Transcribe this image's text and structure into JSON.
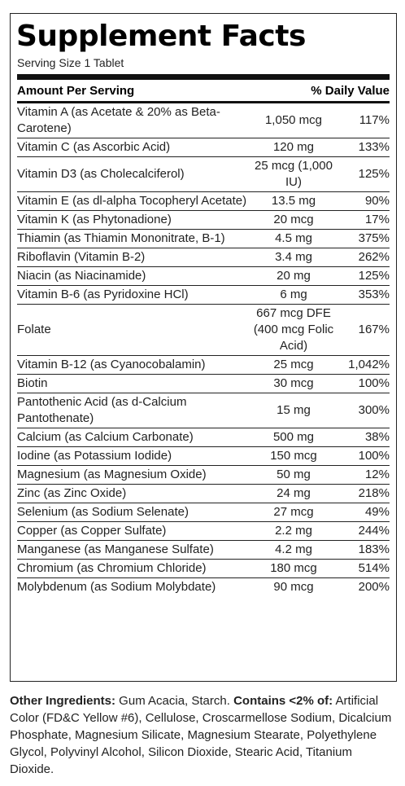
{
  "title": "Supplement Facts",
  "serving_size": "Serving Size 1 Tablet",
  "header": {
    "amount": "Amount Per Serving",
    "daily_value": "% Daily Value"
  },
  "nutrients": [
    {
      "name": "Vitamin A (as Acetate & 20% as Beta-Carotene)",
      "amount": "1,050 mcg",
      "dv": "117%"
    },
    {
      "name": "Vitamin C (as Ascorbic Acid)",
      "amount": "120 mg",
      "dv": "133%"
    },
    {
      "name": "Vitamin D3 (as Cholecalciferol)",
      "amount": "25 mcg (1,000 IU)",
      "dv": "125%"
    },
    {
      "name": "Vitamin E (as dl-alpha Tocopheryl Acetate)",
      "amount": "13.5 mg",
      "dv": "90%"
    },
    {
      "name": "Vitamin K (as Phytonadione)",
      "amount": "20 mcg",
      "dv": "17%"
    },
    {
      "name": "Thiamin (as Thiamin Mononitrate, B-1)",
      "amount": "4.5 mg",
      "dv": "375%"
    },
    {
      "name": "Riboflavin (Vitamin B-2)",
      "amount": "3.4 mg",
      "dv": "262%"
    },
    {
      "name": "Niacin (as Niacinamide)",
      "amount": "20 mg",
      "dv": "125%"
    },
    {
      "name": "Vitamin B-6 (as Pyridoxine HCl)",
      "amount": "6 mg",
      "dv": "353%"
    },
    {
      "name": "Folate",
      "amount": "667 mcg DFE (400 mcg Folic Acid)",
      "dv": "167%"
    },
    {
      "name": "Vitamin B-12 (as Cyanocobalamin)",
      "amount": "25 mcg",
      "dv": "1,042%"
    },
    {
      "name": "Biotin",
      "amount": "30 mcg",
      "dv": "100%"
    },
    {
      "name": "Pantothenic Acid (as d-Calcium Pantothenate)",
      "amount": "15 mg",
      "dv": "300%"
    },
    {
      "name": "Calcium (as Calcium Carbonate)",
      "amount": "500 mg",
      "dv": "38%"
    },
    {
      "name": "Iodine (as Potassium Iodide)",
      "amount": "150 mcg",
      "dv": "100%"
    },
    {
      "name": "Magnesium (as Magnesium Oxide)",
      "amount": "50 mg",
      "dv": "12%"
    },
    {
      "name": "Zinc (as Zinc Oxide)",
      "amount": "24 mg",
      "dv": "218%"
    },
    {
      "name": "Selenium (as Sodium Selenate)",
      "amount": "27 mcg",
      "dv": "49%"
    },
    {
      "name": "Copper (as Copper Sulfate)",
      "amount": "2.2 mg",
      "dv": "244%"
    },
    {
      "name": "Manganese (as Manganese Sulfate)",
      "amount": "4.2 mg",
      "dv": "183%"
    },
    {
      "name": "Chromium (as Chromium Chloride)",
      "amount": "180 mcg",
      "dv": "514%"
    },
    {
      "name": "Molybdenum (as Sodium Molybdate)",
      "amount": "90 mcg",
      "dv": "200%"
    }
  ],
  "ingredients": {
    "other_label": "Other Ingredients:",
    "other_text": " Gum Acacia, Starch. ",
    "contains_label": "Contains <2% of:",
    "contains_text": " Artificial Color (FD&C Yellow #6), Cellulose, Croscarmellose Sodium, Dicalcium Phosphate, Magnesium Silicate, Magnesium Stearate, Polyethylene Glycol, Polyvinyl Alcohol, Silicon Dioxide, Stearic Acid, Titanium Dioxide."
  }
}
